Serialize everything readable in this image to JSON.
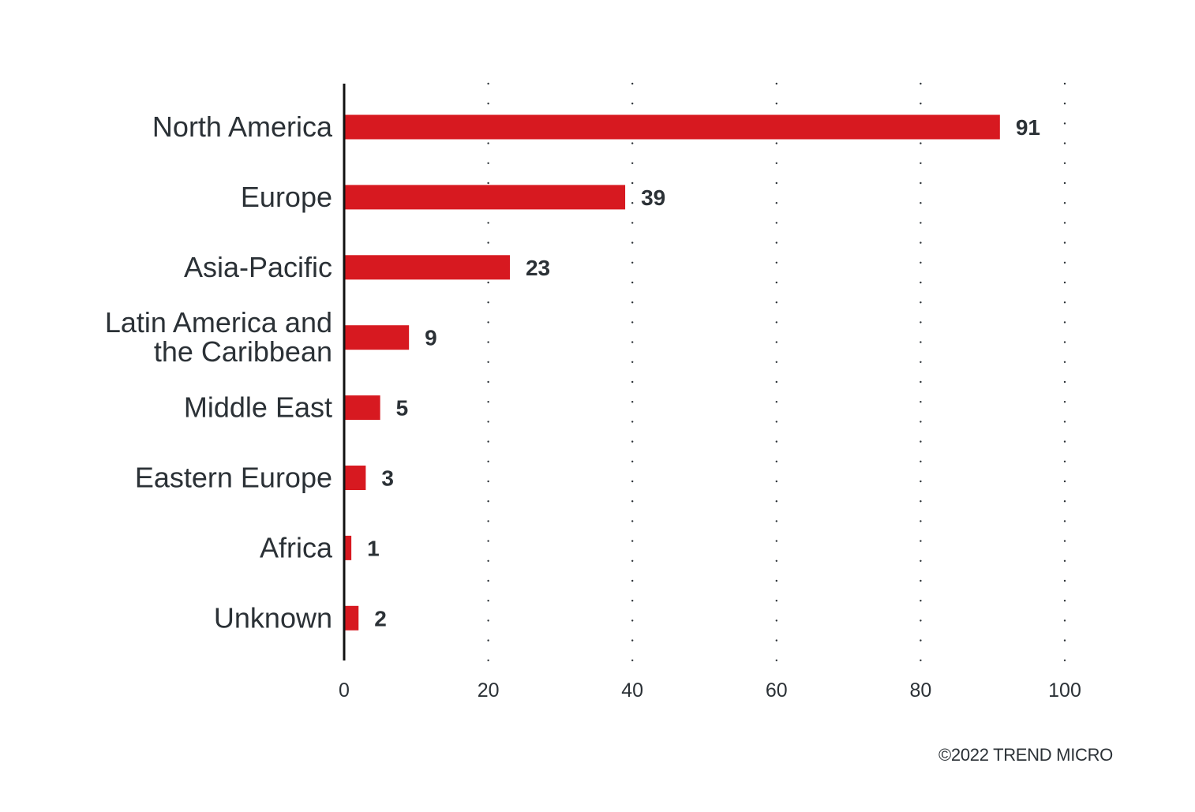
{
  "chart_data": {
    "type": "bar",
    "orientation": "horizontal",
    "categories": [
      "North America",
      "Europe",
      "Asia-Pacific",
      "Latin America and the Caribbean",
      "Middle East",
      "Eastern Europe",
      "Africa",
      "Unknown"
    ],
    "category_lines": [
      [
        "North America"
      ],
      [
        "Europe"
      ],
      [
        "Asia-Pacific"
      ],
      [
        "Latin America and",
        "the Caribbean"
      ],
      [
        "Middle East"
      ],
      [
        "Eastern Europe"
      ],
      [
        "Africa"
      ],
      [
        "Unknown"
      ]
    ],
    "values": [
      91,
      39,
      23,
      9,
      5,
      3,
      1,
      2
    ],
    "xlim": [
      0,
      100
    ],
    "xticks": [
      0,
      20,
      40,
      60,
      80,
      100
    ],
    "grid": "dotted vertical",
    "bar_color": "#d71920",
    "text_color": "#2b3136"
  },
  "footer": {
    "copyright": "©2022 TREND MICRO"
  }
}
